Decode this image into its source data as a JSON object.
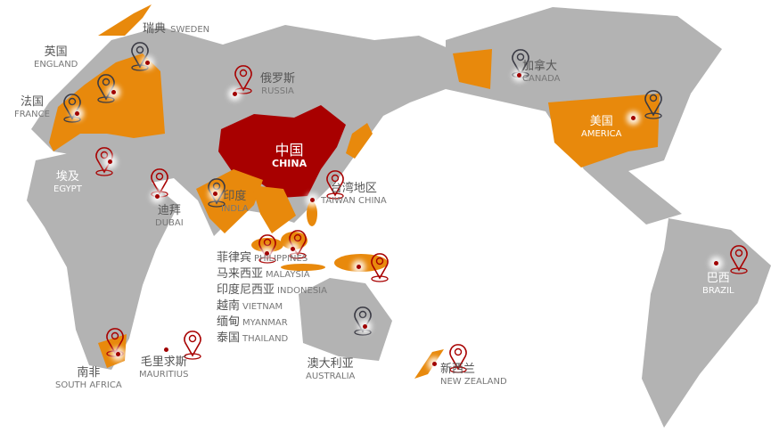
{
  "colors": {
    "land": "#b3b3b3",
    "partner": "#e8890c",
    "china": "#a80000",
    "pin_red": "#a80000",
    "pin_dark": "#3a3a44"
  },
  "labels": [
    {
      "id": "sweden",
      "cn": "瑞典",
      "en": "SWEDEN"
    },
    {
      "id": "england",
      "cn": "英国",
      "en": "ENGLAND"
    },
    {
      "id": "france",
      "cn": "法国",
      "en": "FRANCE"
    },
    {
      "id": "russia",
      "cn": "俄罗斯",
      "en": "RUSSIA"
    },
    {
      "id": "egypt",
      "cn": "埃及",
      "en": "EGYPT"
    },
    {
      "id": "dubai",
      "cn": "迪拜",
      "en": "DUBAI"
    },
    {
      "id": "india",
      "cn": "印度",
      "en": "INDLA"
    },
    {
      "id": "china",
      "cn": "中国",
      "en": "CHINA"
    },
    {
      "id": "taiwan",
      "cn": "台湾地区",
      "en": "TAIWAN CHINA"
    },
    {
      "id": "canada",
      "cn": "加拿大",
      "en": "CANADA"
    },
    {
      "id": "america",
      "cn": "美国",
      "en": "AMERICA"
    },
    {
      "id": "brazil",
      "cn": "巴西",
      "en": "BRAZIL"
    },
    {
      "id": "south_africa",
      "cn": "南非",
      "en": "SOUTH AFRICA"
    },
    {
      "id": "mauritius",
      "cn": "毛里求斯",
      "en": "MAURITIUS"
    },
    {
      "id": "australia",
      "cn": "澳大利亚",
      "en": "AUSTRALIA"
    },
    {
      "id": "new_zealand",
      "cn": "新西兰",
      "en": "NEW ZEALAND"
    }
  ],
  "sea_list": [
    {
      "cn": "菲律宾",
      "en": "PHILIPPINES"
    },
    {
      "cn": "马来西亚",
      "en": "MALAYSIA"
    },
    {
      "cn": "印度尼西亚",
      "en": "INDONESIA"
    },
    {
      "cn": "越南",
      "en": "VIETNAM"
    },
    {
      "cn": "缅甸",
      "en": "MYANMAR"
    },
    {
      "cn": "泰国",
      "en": "THAILAND"
    }
  ]
}
